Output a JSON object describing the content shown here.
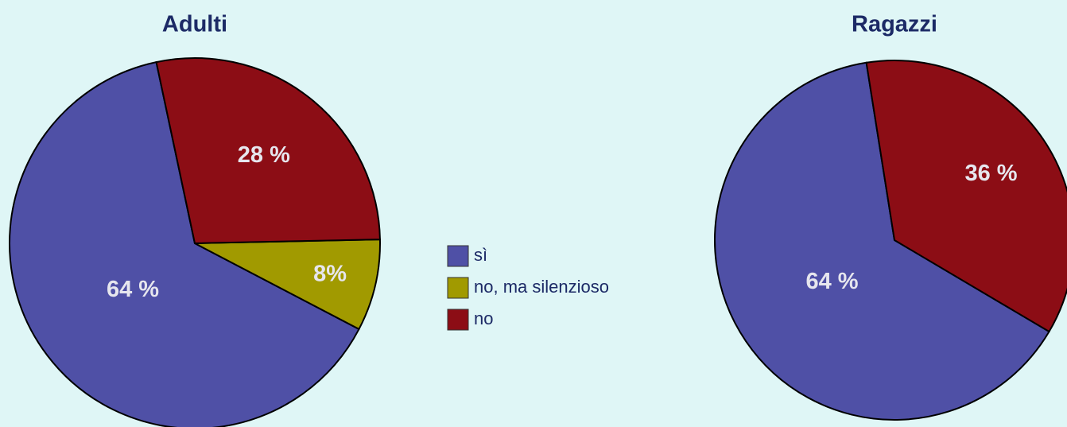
{
  "chart_data": [
    {
      "type": "pie",
      "title": "Adulti",
      "categories": [
        "sì",
        "no, ma silenzioso",
        "no"
      ],
      "values": [
        64,
        8,
        28
      ],
      "value_labels": [
        "64 %",
        "8%",
        "28 %"
      ],
      "colors": [
        "#4f50a6",
        "#a19a00",
        "#8c0d15"
      ]
    },
    {
      "type": "pie",
      "title": "Ragazzi",
      "categories": [
        "sì",
        "no"
      ],
      "values": [
        64,
        36
      ],
      "value_labels": [
        "64 %",
        "36 %"
      ],
      "colors": [
        "#4f50a6",
        "#8c0d15"
      ]
    }
  ]
}
